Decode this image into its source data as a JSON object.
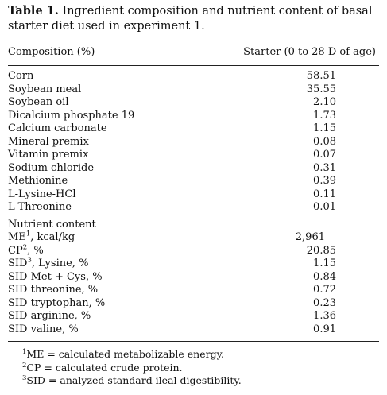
{
  "caption": {
    "label": "Table 1.",
    "text": " Ingredient composition and nutrient content of basal starter diet used in experiment 1."
  },
  "header": {
    "left": "Composition (%)",
    "right": "Starter (0 to 28 D of age)"
  },
  "ingredients": [
    {
      "name": "Corn",
      "value": "58.51"
    },
    {
      "name": "Soybean meal",
      "value": "35.55"
    },
    {
      "name": "Soybean oil",
      "value": "2.10"
    },
    {
      "name": "Dicalcium phosphate 19",
      "value": "1.73"
    },
    {
      "name": "Calcium carbonate",
      "value": "1.15"
    },
    {
      "name": "Mineral premix",
      "value": "0.08"
    },
    {
      "name": "Vitamin premix",
      "value": "0.07"
    },
    {
      "name": "Sodium chloride",
      "value": "0.31"
    },
    {
      "name": "Methionine",
      "value": "0.39"
    },
    {
      "name": "L-Lysine-HCl",
      "value": "0.11"
    },
    {
      "name": "L-Threonine",
      "value": "0.01"
    }
  ],
  "nutrient_section_title": "Nutrient content",
  "nutrients": [
    {
      "name": "ME",
      "sup": "1",
      "suffix": ", kcal/kg",
      "value": "2,961"
    },
    {
      "name": "CP",
      "sup": "2",
      "suffix": ", %",
      "value": "20.85"
    },
    {
      "name": "SID",
      "sup": "3",
      "suffix": ", Lysine, %",
      "value": "1.15"
    },
    {
      "name": "SID Met + Cys, %",
      "sup": "",
      "suffix": "",
      "value": "0.84"
    },
    {
      "name": "SID threonine, %",
      "sup": "",
      "suffix": "",
      "value": "0.72"
    },
    {
      "name": "SID tryptophan, %",
      "sup": "",
      "suffix": "",
      "value": "0.23"
    },
    {
      "name": "SID arginine, %",
      "sup": "",
      "suffix": "",
      "value": "1.36"
    },
    {
      "name": "SID valine, %",
      "sup": "",
      "suffix": "",
      "value": "0.91"
    }
  ],
  "footnotes": [
    {
      "mark": "1",
      "text": "ME = calculated metabolizable energy."
    },
    {
      "mark": "2",
      "text": "CP = calculated crude protein."
    },
    {
      "mark": "3",
      "text": "SID = analyzed standard ileal digestibility."
    }
  ]
}
